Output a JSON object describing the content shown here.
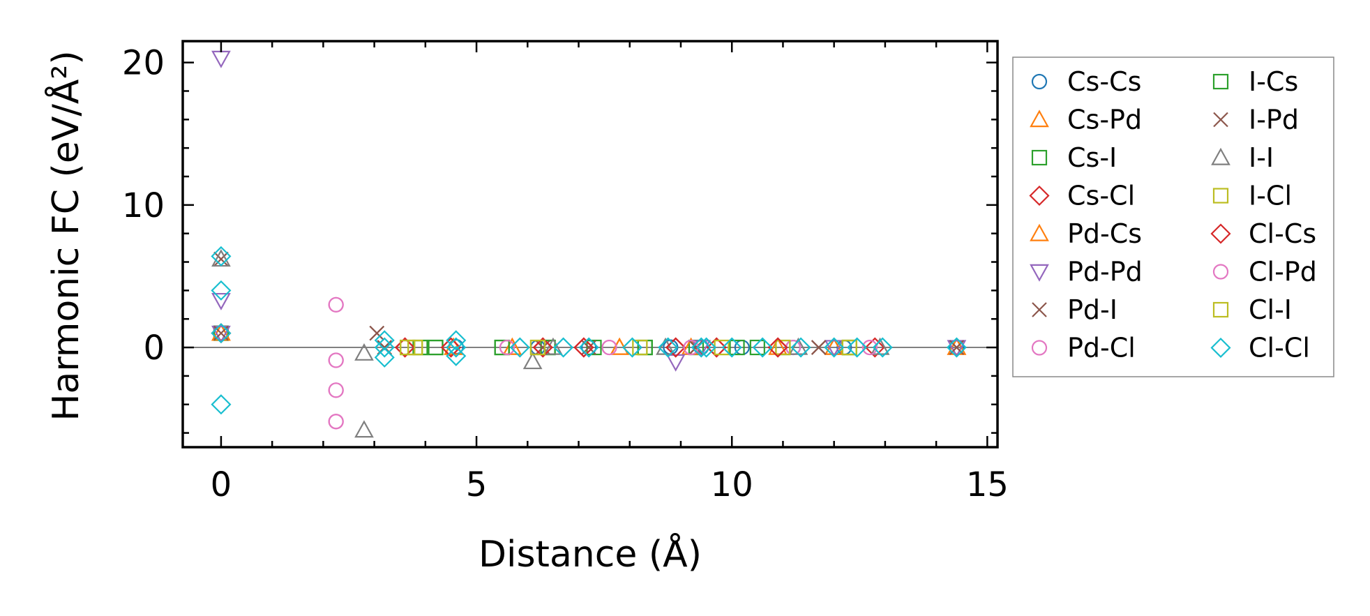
{
  "chart_data": {
    "type": "scatter",
    "xlabel": "Distance (Å)",
    "ylabel": "Harmonic FC (eV/Å²)",
    "xlim": [
      -0.75,
      15.2
    ],
    "ylim": [
      -7,
      21.5
    ],
    "xticks": [
      0,
      5,
      10,
      15
    ],
    "yticks": [
      0,
      10,
      20
    ],
    "xtick_labels": [
      "0",
      "5",
      "10",
      "15"
    ],
    "ytick_labels": [
      "0",
      "10",
      "20"
    ],
    "grid": false,
    "legend_position": "outside-right",
    "zero_line": true,
    "series": [
      {
        "name": "Cs-Cs",
        "marker": "circle",
        "color": "#1f77b4",
        "points": [
          [
            0,
            1.0
          ],
          [
            4.6,
            0.05
          ],
          [
            6.2,
            0.0
          ],
          [
            7.2,
            0.0
          ],
          [
            8.8,
            0.02
          ],
          [
            9.4,
            0.0
          ],
          [
            10.2,
            0.0
          ],
          [
            11.2,
            0.0
          ],
          [
            12.2,
            0.0
          ],
          [
            14.4,
            0.0
          ]
        ]
      },
      {
        "name": "Cs-Pd",
        "marker": "triangle-up",
        "color": "#ff7f0e",
        "points": [
          [
            0,
            1.0
          ],
          [
            4.55,
            0.0
          ],
          [
            5.7,
            0.0
          ],
          [
            7.8,
            0.0
          ],
          [
            9.2,
            0.0
          ],
          [
            10.9,
            0.0
          ],
          [
            12.0,
            0.0
          ],
          [
            14.4,
            0.0
          ]
        ]
      },
      {
        "name": "Cs-I",
        "marker": "square",
        "color": "#2ca02c",
        "points": [
          [
            0,
            1.0
          ],
          [
            3.9,
            0.0
          ],
          [
            4.2,
            0.0
          ],
          [
            5.5,
            0.0
          ],
          [
            6.4,
            0.0
          ],
          [
            7.3,
            0.0
          ],
          [
            8.3,
            0.0
          ],
          [
            9.3,
            0.0
          ],
          [
            10.1,
            0.0
          ],
          [
            11.0,
            0.0
          ],
          [
            12.3,
            0.0
          ]
        ]
      },
      {
        "name": "Cs-Cl",
        "marker": "diamond",
        "color": "#d62728",
        "points": [
          [
            0,
            1.0
          ],
          [
            3.6,
            0.0
          ],
          [
            4.5,
            0.0
          ],
          [
            6.3,
            0.0
          ],
          [
            7.1,
            0.0
          ],
          [
            8.9,
            0.0
          ],
          [
            9.7,
            0.0
          ],
          [
            10.9,
            0.0
          ],
          [
            12.8,
            0.0
          ]
        ]
      },
      {
        "name": "Pd-Cs",
        "marker": "triangle-up",
        "color": "#ff7f0e",
        "points": [
          [
            0,
            1.0
          ],
          [
            4.55,
            0.0
          ],
          [
            5.7,
            0.0
          ],
          [
            7.8,
            0.0
          ],
          [
            9.2,
            0.0
          ],
          [
            12.0,
            0.0
          ],
          [
            14.4,
            0.0
          ]
        ]
      },
      {
        "name": "Pd-Pd",
        "marker": "triangle-down",
        "color": "#9467bd",
        "points": [
          [
            0,
            20.3
          ],
          [
            0,
            3.3
          ],
          [
            0,
            1.0
          ],
          [
            8.9,
            -1.0
          ],
          [
            9.4,
            0.0
          ],
          [
            12.0,
            0.0
          ],
          [
            14.4,
            0.0
          ]
        ]
      },
      {
        "name": "Pd-I",
        "marker": "x",
        "color": "#8c564b",
        "points": [
          [
            0,
            6.2
          ],
          [
            0,
            1.0
          ],
          [
            3.05,
            1.0
          ],
          [
            3.2,
            0.0
          ],
          [
            6.3,
            0.0
          ],
          [
            7.2,
            0.0
          ],
          [
            9.3,
            0.0
          ],
          [
            11.7,
            0.0
          ],
          [
            14.4,
            0.0
          ]
        ]
      },
      {
        "name": "Pd-Cl",
        "marker": "circle",
        "color": "#e377c2",
        "points": [
          [
            2.25,
            3.0
          ],
          [
            2.25,
            -0.9
          ],
          [
            2.25,
            -3.0
          ],
          [
            2.25,
            -5.2
          ],
          [
            5.6,
            0.0
          ],
          [
            7.6,
            0.0
          ],
          [
            9.2,
            0.0
          ],
          [
            11.2,
            0.0
          ],
          [
            12.7,
            0.0
          ]
        ]
      },
      {
        "name": "I-Cs",
        "marker": "square",
        "color": "#2ca02c",
        "points": [
          [
            3.9,
            0.0
          ],
          [
            4.2,
            0.0
          ],
          [
            5.5,
            0.0
          ],
          [
            6.4,
            0.0
          ],
          [
            8.3,
            0.0
          ],
          [
            10.5,
            0.0
          ],
          [
            12.3,
            0.0
          ]
        ]
      },
      {
        "name": "I-Pd",
        "marker": "x",
        "color": "#8c564b",
        "points": [
          [
            3.05,
            1.0
          ],
          [
            3.2,
            0.0
          ],
          [
            6.3,
            0.0
          ],
          [
            9.3,
            0.0
          ],
          [
            11.7,
            0.0
          ]
        ]
      },
      {
        "name": "I-I",
        "marker": "triangle-up",
        "color": "#7f7f7f",
        "points": [
          [
            0,
            6.2
          ],
          [
            2.8,
            -0.4
          ],
          [
            2.8,
            -5.8
          ],
          [
            6.1,
            -1.0
          ],
          [
            6.5,
            0.0
          ],
          [
            8.7,
            0.0
          ],
          [
            11.3,
            0.0
          ],
          [
            12.9,
            0.0
          ]
        ]
      },
      {
        "name": "I-Cl",
        "marker": "square",
        "color": "#bcbd22",
        "points": [
          [
            3.65,
            0.0
          ],
          [
            3.8,
            0.0
          ],
          [
            6.2,
            0.0
          ],
          [
            8.2,
            0.0
          ],
          [
            9.8,
            0.0
          ],
          [
            11.0,
            0.0
          ],
          [
            12.3,
            0.0
          ]
        ]
      },
      {
        "name": "Cl-Cs",
        "marker": "diamond",
        "color": "#d62728",
        "points": [
          [
            3.6,
            0.0
          ],
          [
            4.5,
            0.0
          ],
          [
            6.3,
            0.0
          ],
          [
            7.1,
            0.0
          ],
          [
            8.9,
            0.0
          ],
          [
            9.7,
            0.0
          ],
          [
            10.9,
            0.0
          ]
        ]
      },
      {
        "name": "Cl-Pd",
        "marker": "circle",
        "color": "#e377c2",
        "points": [
          [
            2.25,
            3.0
          ],
          [
            2.25,
            -0.9
          ],
          [
            2.25,
            -3.0
          ],
          [
            2.25,
            -5.2
          ],
          [
            5.6,
            0.0
          ],
          [
            7.6,
            0.0
          ],
          [
            9.2,
            0.0
          ],
          [
            12.7,
            0.0
          ]
        ]
      },
      {
        "name": "Cl-I",
        "marker": "square",
        "color": "#bcbd22",
        "points": [
          [
            3.65,
            0.0
          ],
          [
            3.8,
            0.0
          ],
          [
            6.2,
            0.0
          ],
          [
            8.2,
            0.0
          ],
          [
            9.8,
            0.0
          ],
          [
            12.3,
            0.0
          ]
        ]
      },
      {
        "name": "Cl-Cl",
        "marker": "diamond",
        "color": "#17becf",
        "points": [
          [
            0,
            6.4
          ],
          [
            0,
            4.0
          ],
          [
            0,
            1.0
          ],
          [
            0,
            -4.0
          ],
          [
            3.2,
            0.5
          ],
          [
            3.2,
            0.0
          ],
          [
            3.2,
            -0.7
          ],
          [
            4.6,
            0.5
          ],
          [
            4.6,
            0.0
          ],
          [
            4.6,
            -0.6
          ],
          [
            5.85,
            0.0
          ],
          [
            6.7,
            0.0
          ],
          [
            7.2,
            0.0
          ],
          [
            8.05,
            0.0
          ],
          [
            8.75,
            0.0
          ],
          [
            9.4,
            0.0
          ],
          [
            9.5,
            0.0
          ],
          [
            10.0,
            0.0
          ],
          [
            10.6,
            0.0
          ],
          [
            11.35,
            0.0
          ],
          [
            12.0,
            0.0
          ],
          [
            12.45,
            0.0
          ],
          [
            12.95,
            0.0
          ],
          [
            14.4,
            0.0
          ]
        ]
      }
    ]
  }
}
